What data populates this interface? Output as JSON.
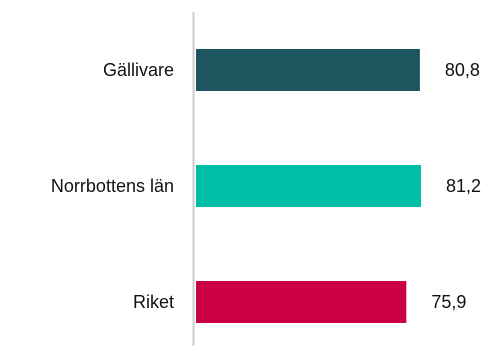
{
  "chart_data": {
    "type": "bar",
    "orientation": "horizontal",
    "categories": [
      "Gällivare",
      "Norrbottens län",
      "Riket"
    ],
    "values": [
      80.8,
      81.2,
      75.9
    ],
    "value_labels": [
      "80,8",
      "81,2",
      "75,9"
    ],
    "colors": [
      "#1e5660",
      "#00bfa8",
      "#cc0044"
    ],
    "axis_line_color": "#cccccc",
    "xlim": [
      0,
      81.2
    ],
    "grid": false,
    "legend": "none",
    "title": "",
    "xlabel": "",
    "ylabel": ""
  }
}
